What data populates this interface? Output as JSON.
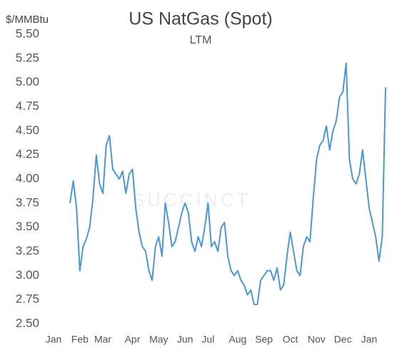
{
  "chart_data": {
    "type": "line",
    "title": "US NatGas (Spot)",
    "subtitle": "LTM",
    "y_label": "$/MMBtu",
    "watermark": "SUCCINCT",
    "categories": [
      "Jan",
      null,
      null,
      null,
      null,
      null,
      null,
      null,
      "Feb",
      null,
      null,
      null,
      null,
      null,
      null,
      "Mar",
      null,
      null,
      null,
      null,
      null,
      null,
      null,
      null,
      "Apr",
      null,
      null,
      null,
      null,
      null,
      null,
      null,
      "May",
      null,
      null,
      null,
      null,
      null,
      null,
      null,
      "Jun",
      null,
      null,
      null,
      null,
      null,
      null,
      "Jul",
      null,
      null,
      null,
      null,
      null,
      null,
      null,
      null,
      "Aug",
      null,
      null,
      null,
      null,
      null,
      null,
      null,
      "Sep",
      null,
      null,
      null,
      null,
      null,
      null,
      null,
      "Oct",
      null,
      null,
      null,
      null,
      null,
      null,
      null,
      "Nov",
      null,
      null,
      null,
      null,
      null,
      null,
      null,
      "Dec",
      null,
      null,
      null,
      null,
      null,
      null,
      null,
      "Jan",
      null,
      null,
      null,
      null,
      null
    ],
    "series": [
      {
        "name": "US NatGas",
        "color": "#4a98d6",
        "values": [
          null,
          null,
          null,
          null,
          null,
          3.75,
          3.98,
          3.7,
          3.05,
          3.3,
          3.38,
          3.5,
          3.8,
          4.25,
          3.95,
          3.85,
          4.35,
          4.45,
          4.1,
          4.05,
          4.0,
          4.08,
          3.85,
          4.05,
          4.1,
          3.7,
          3.45,
          3.3,
          3.25,
          3.05,
          2.95,
          3.3,
          3.4,
          3.2,
          3.75,
          3.55,
          3.3,
          3.35,
          3.5,
          3.65,
          3.75,
          3.65,
          3.35,
          3.25,
          3.4,
          3.3,
          3.5,
          3.75,
          3.3,
          3.35,
          3.25,
          3.5,
          3.55,
          3.2,
          3.05,
          3.0,
          3.05,
          2.95,
          2.9,
          2.8,
          2.85,
          2.7,
          2.7,
          2.95,
          3.0,
          3.05,
          3.05,
          2.95,
          3.08,
          2.85,
          2.9,
          3.2,
          3.45,
          3.25,
          3.05,
          3.0,
          3.3,
          3.4,
          3.35,
          3.8,
          4.2,
          4.35,
          4.4,
          4.55,
          4.3,
          4.5,
          4.6,
          4.85,
          4.9,
          5.2,
          4.2,
          4.0,
          3.95,
          4.05,
          4.3,
          4.0,
          3.7,
          3.55,
          3.4,
          3.15,
          3.4,
          4.95
        ]
      }
    ],
    "ylim": [
      2.5,
      5.5
    ],
    "yticks": [
      {
        "value": 2.5,
        "label": "2.50"
      },
      {
        "value": 2.75,
        "label": "2.75"
      },
      {
        "value": 3,
        "label": "3.00"
      },
      {
        "value": 3.25,
        "label": "3.25"
      },
      {
        "value": 3.5,
        "label": "3.50"
      },
      {
        "value": 3.75,
        "label": "3.75"
      },
      {
        "value": 4,
        "label": "4.00"
      },
      {
        "value": 4.25,
        "label": "4.25"
      },
      {
        "value": 4.5,
        "label": "4.50"
      },
      {
        "value": 4.75,
        "label": "4.75"
      },
      {
        "value": 5,
        "label": "5.00"
      },
      {
        "value": 5.25,
        "label": "5.25"
      },
      {
        "value": 5.5,
        "label": "5.50"
      }
    ],
    "grid": false
  }
}
